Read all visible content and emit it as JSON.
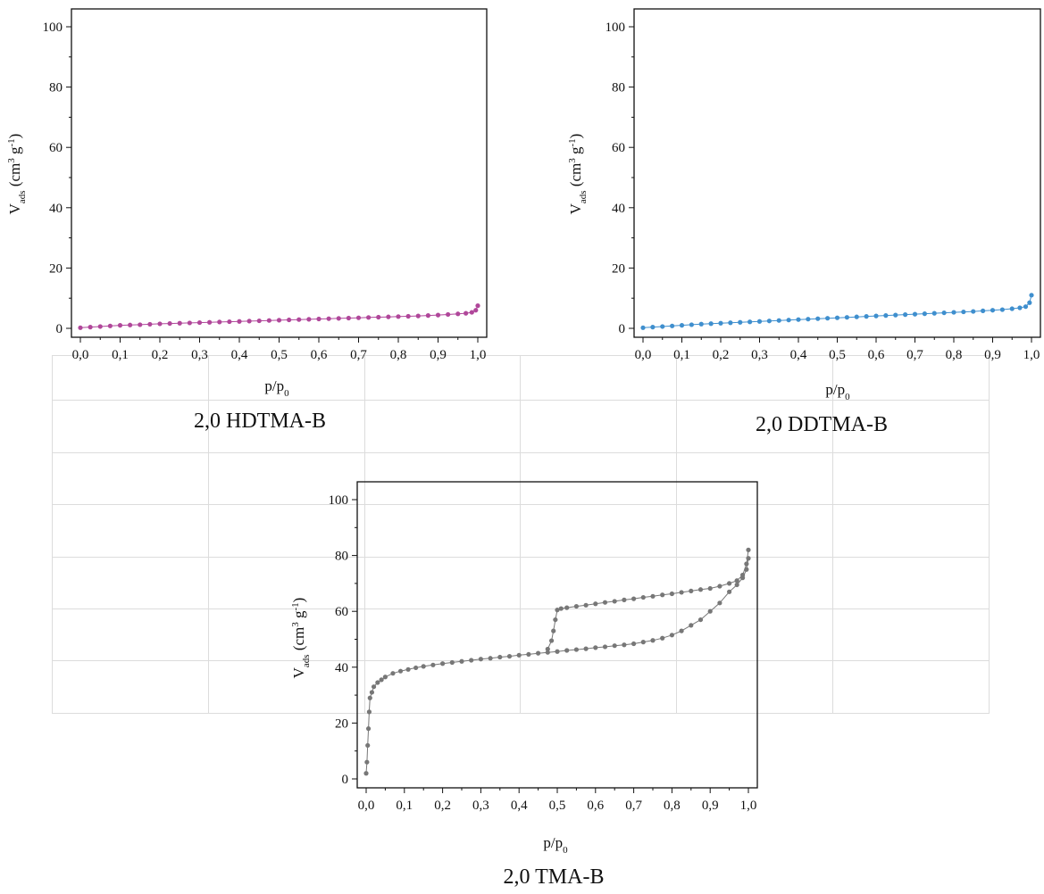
{
  "chart_data": [
    {
      "type": "scatter",
      "caption": "2,0 HDTMA-B",
      "xlabel": "p/p0",
      "ylabel": "Vads (cm3 g-1)",
      "xlim": [
        0.0,
        1.0
      ],
      "ylim": [
        0,
        100
      ],
      "xticks": [
        "0,0",
        "0,1",
        "0,2",
        "0,3",
        "0,4",
        "0,5",
        "0,6",
        "0,7",
        "0,8",
        "0,9",
        "1,0"
      ],
      "yticks": [
        "0",
        "20",
        "40",
        "60",
        "80",
        "100"
      ],
      "color": "#b0479a",
      "series": [
        {
          "x": [
            0.0,
            0.025,
            0.05,
            0.075,
            0.1,
            0.125,
            0.15,
            0.175,
            0.2,
            0.225,
            0.25,
            0.275,
            0.3,
            0.325,
            0.35,
            0.375,
            0.4,
            0.425,
            0.45,
            0.475,
            0.5,
            0.525,
            0.55,
            0.575,
            0.6,
            0.625,
            0.65,
            0.675,
            0.7,
            0.725,
            0.75,
            0.775,
            0.8,
            0.825,
            0.85,
            0.875,
            0.9,
            0.925,
            0.95,
            0.97,
            0.985,
            0.995,
            1.0
          ],
          "y": [
            0.2,
            0.4,
            0.6,
            0.8,
            1.0,
            1.1,
            1.2,
            1.35,
            1.5,
            1.6,
            1.7,
            1.8,
            1.9,
            2.0,
            2.1,
            2.2,
            2.3,
            2.4,
            2.5,
            2.6,
            2.7,
            2.8,
            2.9,
            3.0,
            3.1,
            3.2,
            3.3,
            3.4,
            3.5,
            3.6,
            3.7,
            3.8,
            3.9,
            4.0,
            4.1,
            4.25,
            4.4,
            4.6,
            4.8,
            5.0,
            5.3,
            6.0,
            7.5
          ]
        }
      ]
    },
    {
      "type": "scatter",
      "caption": "2,0 DDTMA-B",
      "xlabel": "p/p0",
      "ylabel": "Vads (cm3 g-1)",
      "xlim": [
        0.0,
        1.0
      ],
      "ylim": [
        0,
        100
      ],
      "xticks": [
        "0,0",
        "0,1",
        "0,2",
        "0,3",
        "0,4",
        "0,5",
        "0,6",
        "0,7",
        "0,8",
        "0,9",
        "1,0"
      ],
      "yticks": [
        "0",
        "20",
        "40",
        "60",
        "80",
        "100"
      ],
      "color": "#3f8fce",
      "series": [
        {
          "x": [
            0.0,
            0.025,
            0.05,
            0.075,
            0.1,
            0.125,
            0.15,
            0.175,
            0.2,
            0.225,
            0.25,
            0.275,
            0.3,
            0.325,
            0.35,
            0.375,
            0.4,
            0.425,
            0.45,
            0.475,
            0.5,
            0.525,
            0.55,
            0.575,
            0.6,
            0.625,
            0.65,
            0.675,
            0.7,
            0.725,
            0.75,
            0.775,
            0.8,
            0.825,
            0.85,
            0.875,
            0.9,
            0.925,
            0.95,
            0.97,
            0.985,
            0.995,
            1.0
          ],
          "y": [
            0.2,
            0.4,
            0.6,
            0.8,
            1.0,
            1.2,
            1.4,
            1.55,
            1.7,
            1.85,
            2.0,
            2.15,
            2.3,
            2.45,
            2.6,
            2.75,
            2.9,
            3.05,
            3.2,
            3.35,
            3.5,
            3.65,
            3.8,
            3.95,
            4.1,
            4.25,
            4.4,
            4.55,
            4.7,
            4.85,
            5.0,
            5.15,
            5.3,
            5.45,
            5.6,
            5.8,
            6.0,
            6.2,
            6.5,
            6.8,
            7.2,
            8.5,
            11.0
          ]
        }
      ]
    },
    {
      "type": "scatter",
      "caption": "2,0 TMA-B",
      "xlabel": "p/p0",
      "ylabel": "Vads (cm3 g-1)",
      "xlim": [
        0.0,
        1.0
      ],
      "ylim": [
        0,
        100
      ],
      "xticks": [
        "0,0",
        "0,1",
        "0,2",
        "0,3",
        "0,4",
        "0,5",
        "0,6",
        "0,7",
        "0,8",
        "0,9",
        "1,0"
      ],
      "yticks": [
        "0",
        "20",
        "40",
        "60",
        "80",
        "100"
      ],
      "color": "#777777",
      "series": [
        {
          "x": [
            0.0,
            0.002,
            0.004,
            0.006,
            0.008,
            0.01,
            0.015,
            0.02,
            0.03,
            0.04,
            0.05,
            0.07,
            0.09,
            0.11,
            0.13,
            0.15,
            0.175,
            0.2,
            0.225,
            0.25,
            0.275,
            0.3,
            0.325,
            0.35,
            0.375,
            0.4,
            0.425,
            0.45,
            0.475,
            0.5,
            0.525,
            0.55,
            0.575,
            0.6,
            0.625,
            0.65,
            0.675,
            0.7,
            0.725,
            0.75,
            0.775,
            0.8,
            0.825,
            0.85,
            0.875,
            0.9,
            0.925,
            0.95,
            0.97,
            0.985,
            0.995,
            1.0
          ],
          "y": [
            2,
            6,
            12,
            18,
            24,
            29,
            31,
            33,
            34.5,
            35.5,
            36.5,
            37.8,
            38.6,
            39.2,
            39.8,
            40.3,
            40.8,
            41.3,
            41.7,
            42.1,
            42.5,
            42.9,
            43.2,
            43.6,
            43.9,
            44.3,
            44.6,
            45.0,
            45.3,
            45.6,
            46.0,
            46.3,
            46.6,
            47.0,
            47.3,
            47.7,
            48.0,
            48.4,
            49.0,
            49.6,
            50.4,
            51.5,
            53.0,
            55.0,
            57.0,
            60.0,
            63.0,
            67.0,
            69.5,
            72.0,
            75.0,
            79.0
          ]
        },
        {
          "x": [
            1.0,
            0.995,
            0.985,
            0.97,
            0.95,
            0.925,
            0.9,
            0.875,
            0.85,
            0.825,
            0.8,
            0.775,
            0.75,
            0.725,
            0.7,
            0.675,
            0.65,
            0.625,
            0.6,
            0.575,
            0.55,
            0.525,
            0.51,
            0.5,
            0.495,
            0.49,
            0.485,
            0.475
          ],
          "y": [
            82,
            77,
            73,
            71,
            70,
            69,
            68.2,
            67.8,
            67.3,
            66.8,
            66.3,
            65.9,
            65.4,
            65.0,
            64.5,
            64.1,
            63.6,
            63.2,
            62.7,
            62.2,
            61.8,
            61.3,
            61.0,
            60.5,
            57.0,
            53.0,
            49.5,
            46.5
          ]
        }
      ]
    }
  ]
}
